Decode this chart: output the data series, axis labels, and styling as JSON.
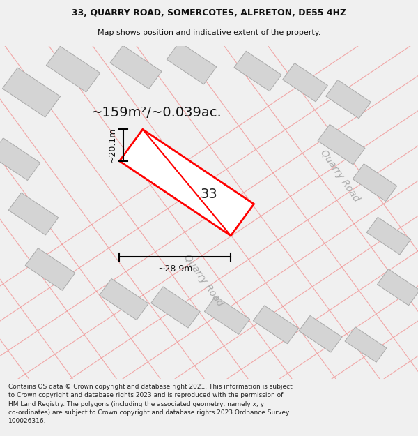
{
  "title_line1": "33, QUARRY ROAD, SOMERCOTES, ALFRETON, DE55 4HZ",
  "title_line2": "Map shows position and indicative extent of the property.",
  "area_text": "~159m²/~0.039ac.",
  "label_33": "33",
  "dim_width": "~28.9m",
  "dim_height": "~20.1m",
  "road_label1": "Quarry Road",
  "road_label2": "Quarry Road",
  "footer_text": "Contains OS data © Crown copyright and database right 2021. This information is subject to Crown copyright and database rights 2023 and is reproduced with the permission of HM Land Registry. The polygons (including the associated geometry, namely x, y co-ordinates) are subject to Crown copyright and database rights 2023 Ordnance Survey 100026316.",
  "bg_color": "#f0f0f0",
  "map_bg": "#ffffff",
  "parcel_color": "#ff0000",
  "parcel_fill": "#ffffff",
  "building_fc": "#d4d4d4",
  "building_ec": "#aaaaaa",
  "road_line_color": "#f08080",
  "dim_line_color": "#000000",
  "title_fontsize": 9,
  "subtitle_fontsize": 8,
  "area_fontsize": 14,
  "label_fontsize": 14,
  "dim_fontsize": 9,
  "road_fontsize": 10,
  "footer_fontsize": 6.5
}
